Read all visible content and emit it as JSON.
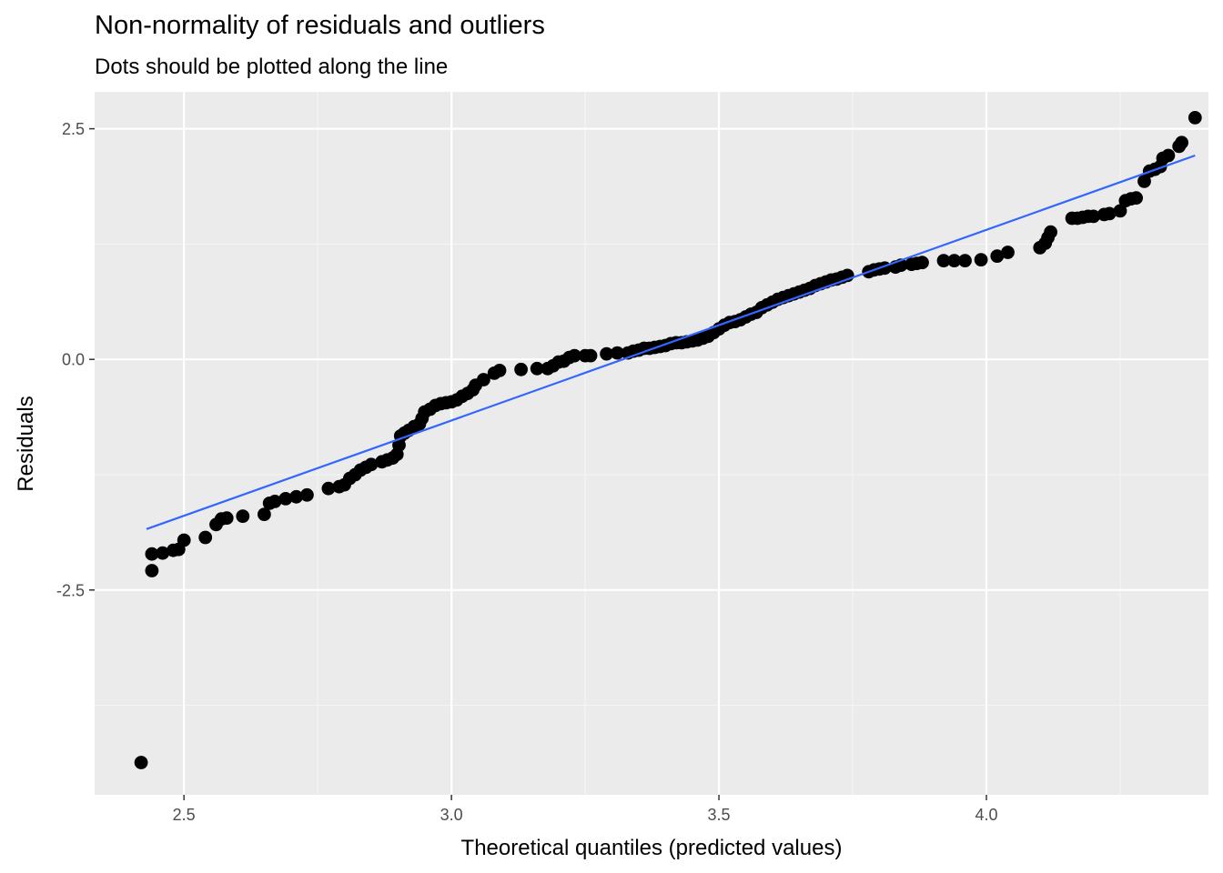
{
  "chart_data": {
    "type": "scatter",
    "title": "Non-normality of residuals and outliers",
    "subtitle": "Dots should be plotted along the line",
    "xlabel": "Theoretical quantiles (predicted values)",
    "ylabel": "Residuals",
    "xlim": [
      2.333,
      4.415
    ],
    "ylim": [
      -4.72,
      2.9
    ],
    "x_ticks": [
      2.5,
      3.0,
      3.5,
      4.0
    ],
    "x_tick_labels": [
      "2.5",
      "3.0",
      "3.5",
      "4.0"
    ],
    "y_ticks": [
      2.5,
      0.0,
      -2.5
    ],
    "y_tick_labels": [
      "2.5",
      "0.0",
      "-2.5"
    ],
    "grid": true,
    "panel_background": "#ebebeb",
    "point_color": "#000000",
    "line_color": "#3366ff",
    "reference_line": {
      "x": [
        2.43,
        4.39
      ],
      "y": [
        -1.84,
        2.21
      ]
    },
    "points": [
      [
        2.42,
        -4.37
      ],
      [
        2.44,
        -2.29
      ],
      [
        2.44,
        -2.11
      ],
      [
        2.46,
        -2.1
      ],
      [
        2.48,
        -2.07
      ],
      [
        2.49,
        -2.06
      ],
      [
        2.5,
        -1.96
      ],
      [
        2.54,
        -1.93
      ],
      [
        2.56,
        -1.79
      ],
      [
        2.57,
        -1.73
      ],
      [
        2.58,
        -1.72
      ],
      [
        2.61,
        -1.7
      ],
      [
        2.65,
        -1.68
      ],
      [
        2.66,
        -1.56
      ],
      [
        2.67,
        -1.54
      ],
      [
        2.69,
        -1.51
      ],
      [
        2.71,
        -1.49
      ],
      [
        2.73,
        -1.47
      ],
      [
        2.77,
        -1.4
      ],
      [
        2.79,
        -1.38
      ],
      [
        2.8,
        -1.36
      ],
      [
        2.81,
        -1.29
      ],
      [
        2.82,
        -1.25
      ],
      [
        2.83,
        -1.2
      ],
      [
        2.84,
        -1.17
      ],
      [
        2.85,
        -1.14
      ],
      [
        2.87,
        -1.11
      ],
      [
        2.88,
        -1.09
      ],
      [
        2.89,
        -1.07
      ],
      [
        2.898,
        -1.03
      ],
      [
        2.902,
        -0.93
      ],
      [
        2.905,
        -0.83
      ],
      [
        2.912,
        -0.8
      ],
      [
        2.92,
        -0.77
      ],
      [
        2.93,
        -0.73
      ],
      [
        2.94,
        -0.7
      ],
      [
        2.945,
        -0.64
      ],
      [
        2.95,
        -0.57
      ],
      [
        2.96,
        -0.54
      ],
      [
        2.97,
        -0.5
      ],
      [
        2.98,
        -0.48
      ],
      [
        2.99,
        -0.47
      ],
      [
        3.0,
        -0.46
      ],
      [
        3.01,
        -0.44
      ],
      [
        3.02,
        -0.4
      ],
      [
        3.03,
        -0.37
      ],
      [
        3.04,
        -0.33
      ],
      [
        3.045,
        -0.28
      ],
      [
        3.06,
        -0.22
      ],
      [
        3.08,
        -0.15
      ],
      [
        3.09,
        -0.12
      ],
      [
        3.13,
        -0.11
      ],
      [
        3.16,
        -0.1
      ],
      [
        3.18,
        -0.1
      ],
      [
        3.19,
        -0.07
      ],
      [
        3.2,
        -0.03
      ],
      [
        3.21,
        -0.02
      ],
      [
        3.22,
        0.02
      ],
      [
        3.23,
        0.04
      ],
      [
        3.25,
        0.04
      ],
      [
        3.26,
        0.04
      ],
      [
        3.29,
        0.06
      ],
      [
        3.31,
        0.07
      ],
      [
        3.33,
        0.07
      ],
      [
        3.34,
        0.09
      ],
      [
        3.35,
        0.1
      ],
      [
        3.36,
        0.12
      ],
      [
        3.37,
        0.12
      ],
      [
        3.38,
        0.13
      ],
      [
        3.39,
        0.14
      ],
      [
        3.4,
        0.15
      ],
      [
        3.41,
        0.17
      ],
      [
        3.42,
        0.18
      ],
      [
        3.43,
        0.18
      ],
      [
        3.44,
        0.19
      ],
      [
        3.45,
        0.2
      ],
      [
        3.46,
        0.21
      ],
      [
        3.47,
        0.23
      ],
      [
        3.48,
        0.25
      ],
      [
        3.49,
        0.29
      ],
      [
        3.5,
        0.33
      ],
      [
        3.51,
        0.37
      ],
      [
        3.52,
        0.4
      ],
      [
        3.53,
        0.41
      ],
      [
        3.54,
        0.43
      ],
      [
        3.55,
        0.46
      ],
      [
        3.56,
        0.49
      ],
      [
        3.57,
        0.51
      ],
      [
        3.58,
        0.56
      ],
      [
        3.59,
        0.59
      ],
      [
        3.6,
        0.62
      ],
      [
        3.61,
        0.65
      ],
      [
        3.62,
        0.67
      ],
      [
        3.63,
        0.69
      ],
      [
        3.64,
        0.71
      ],
      [
        3.65,
        0.73
      ],
      [
        3.66,
        0.75
      ],
      [
        3.67,
        0.77
      ],
      [
        3.68,
        0.8
      ],
      [
        3.69,
        0.82
      ],
      [
        3.7,
        0.84
      ],
      [
        3.71,
        0.86
      ],
      [
        3.72,
        0.87
      ],
      [
        3.73,
        0.89
      ],
      [
        3.74,
        0.91
      ],
      [
        3.78,
        0.95
      ],
      [
        3.79,
        0.97
      ],
      [
        3.8,
        0.98
      ],
      [
        3.81,
        0.99
      ],
      [
        3.83,
        1.0
      ],
      [
        3.84,
        1.02
      ],
      [
        3.86,
        1.03
      ],
      [
        3.87,
        1.04
      ],
      [
        3.88,
        1.05
      ],
      [
        3.92,
        1.07
      ],
      [
        3.94,
        1.07
      ],
      [
        3.96,
        1.07
      ],
      [
        3.99,
        1.08
      ],
      [
        4.02,
        1.12
      ],
      [
        4.04,
        1.16
      ],
      [
        4.1,
        1.21
      ],
      [
        4.11,
        1.26
      ],
      [
        4.115,
        1.32
      ],
      [
        4.12,
        1.38
      ],
      [
        4.16,
        1.53
      ],
      [
        4.17,
        1.53
      ],
      [
        4.18,
        1.54
      ],
      [
        4.19,
        1.55
      ],
      [
        4.2,
        1.55
      ],
      [
        4.22,
        1.57
      ],
      [
        4.23,
        1.58
      ],
      [
        4.25,
        1.61
      ],
      [
        4.26,
        1.72
      ],
      [
        4.27,
        1.74
      ],
      [
        4.28,
        1.75
      ],
      [
        4.295,
        1.93
      ],
      [
        4.305,
        2.04
      ],
      [
        4.315,
        2.06
      ],
      [
        4.325,
        2.09
      ],
      [
        4.33,
        2.18
      ],
      [
        4.34,
        2.21
      ],
      [
        4.36,
        2.31
      ],
      [
        4.365,
        2.35
      ],
      [
        4.39,
        2.62
      ]
    ]
  }
}
